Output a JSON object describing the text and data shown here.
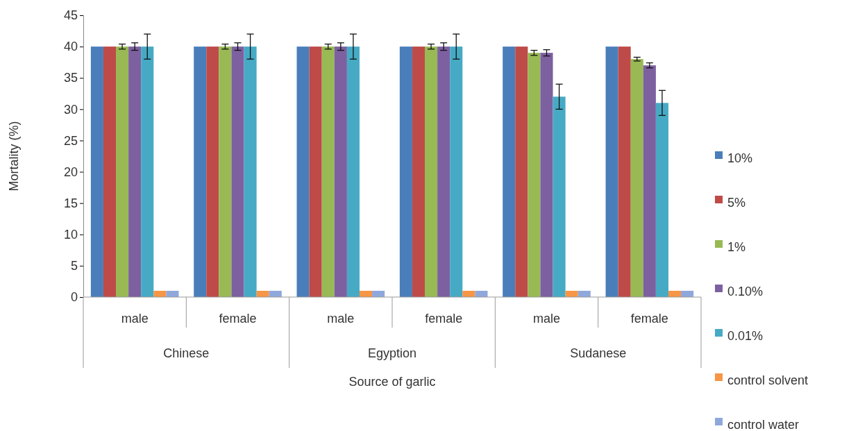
{
  "chart_data": {
    "type": "bar",
    "xlabel": "Source of garlic",
    "ylabel": "Mortality (%)",
    "categories": [
      "male",
      "female",
      "male",
      "female",
      "male",
      "female"
    ],
    "annotations": [
      "Chinese",
      "Egyption",
      "Sudanese"
    ],
    "ylim": [
      0,
      45
    ],
    "yticks": [
      0,
      5,
      10,
      15,
      20,
      25,
      30,
      35,
      40,
      45
    ],
    "grid": false,
    "legend": "right",
    "series": [
      {
        "name": "10%",
        "color": "#4a7ebb",
        "values": [
          40,
          40,
          40,
          40,
          40,
          40
        ]
      },
      {
        "name": "5%",
        "color": "#be4b48",
        "values": [
          40,
          40,
          40,
          40,
          40,
          40
        ]
      },
      {
        "name": "1%",
        "color": "#98b954",
        "values": [
          40,
          40,
          40,
          40,
          39,
          38
        ],
        "errors": [
          0.4,
          0.4,
          0.4,
          0.4,
          0.4,
          0.3
        ]
      },
      {
        "name": "0.10%",
        "color": "#7d60a0",
        "values": [
          40,
          40,
          40,
          40,
          39,
          37
        ],
        "errors": [
          0.6,
          0.6,
          0.6,
          0.6,
          0.5,
          0.4
        ]
      },
      {
        "name": "0.01%",
        "color": "#46aac5",
        "values": [
          40,
          40,
          40,
          40,
          32,
          31
        ],
        "errors": [
          2,
          2,
          2,
          2,
          2,
          2
        ]
      },
      {
        "name": "control solvent",
        "color": "#f79646",
        "values": [
          1,
          1,
          1,
          1,
          1,
          1
        ]
      },
      {
        "name": "control water",
        "color": "#8fa8dc",
        "values": [
          1,
          1,
          1,
          1,
          1,
          1
        ]
      }
    ]
  }
}
